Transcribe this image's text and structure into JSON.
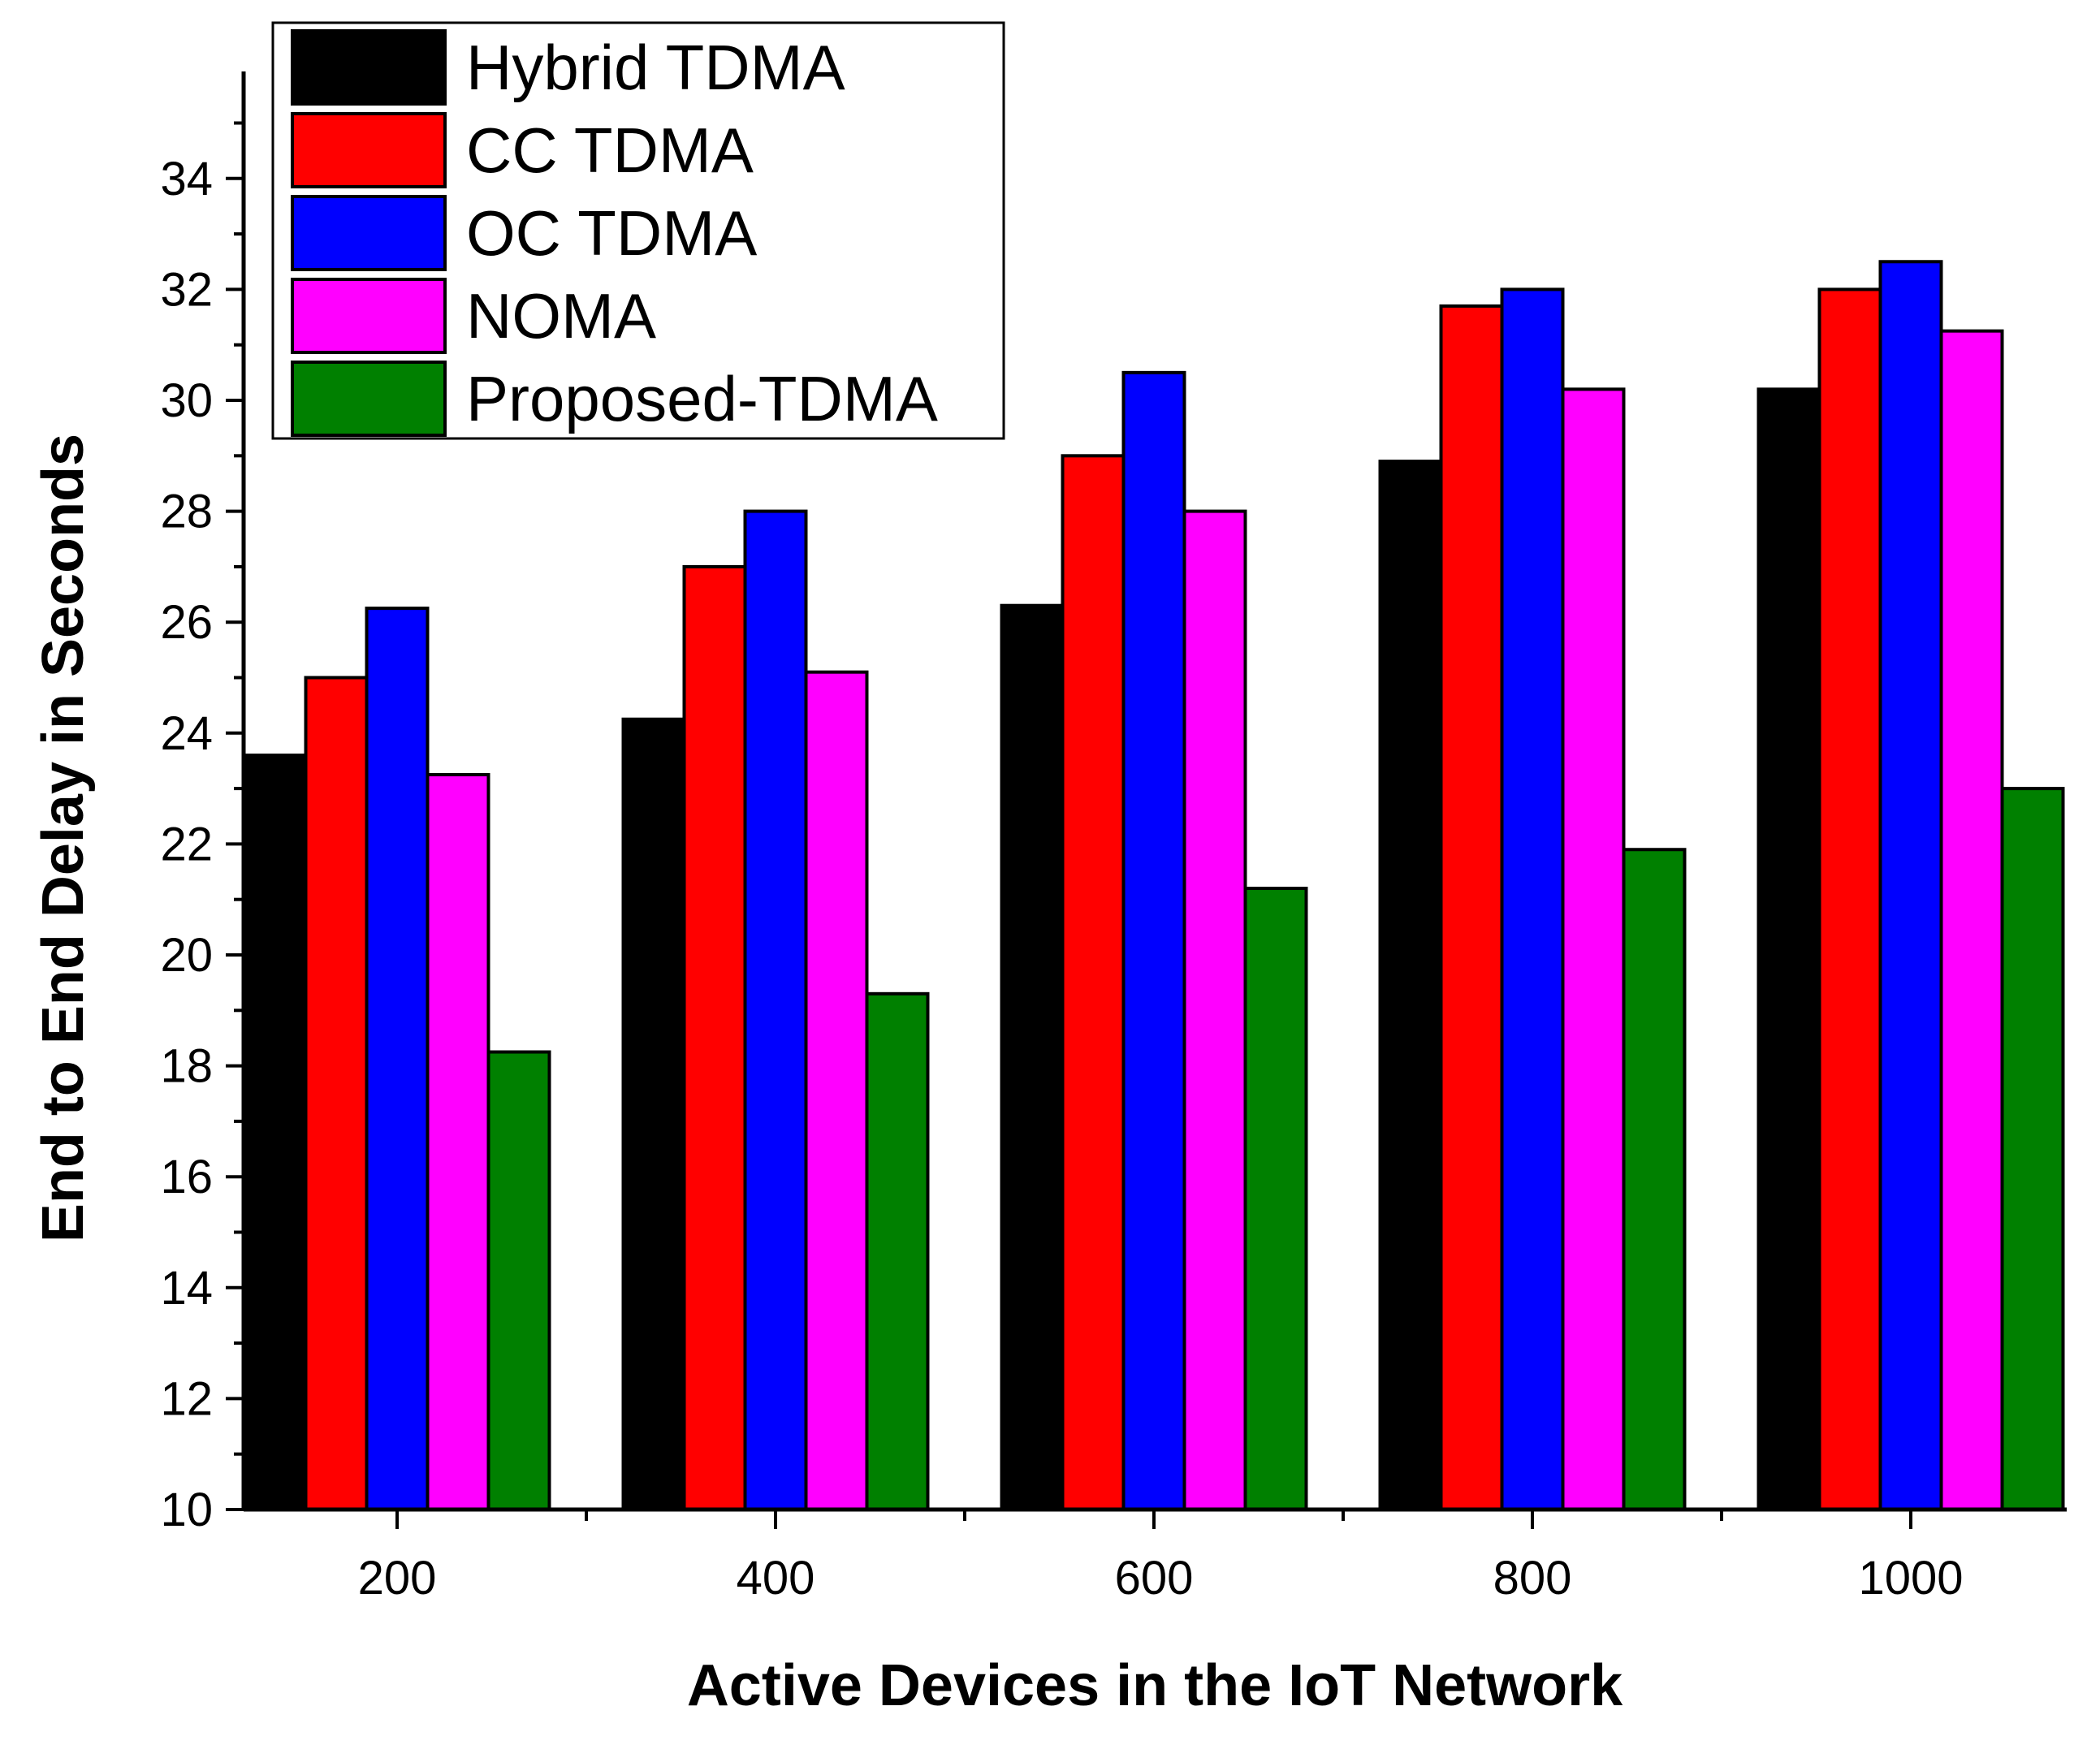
{
  "chart_data": {
    "type": "bar",
    "title": "",
    "xlabel": "Active Devices in the IoT Network",
    "ylabel": "End to End Delay in Seconds",
    "categories": [
      "200",
      "400",
      "600",
      "800",
      "1000"
    ],
    "ylim": [
      10,
      36
    ],
    "yticks": [
      "10",
      "12",
      "14",
      "16",
      "18",
      "20",
      "22",
      "24",
      "26",
      "28",
      "30",
      "32",
      "34"
    ],
    "grid": false,
    "legend_position": "top-left",
    "series": [
      {
        "name": "Hybrid TDMA",
        "color": "#000000",
        "values": [
          23.6,
          24.25,
          26.3,
          28.9,
          30.2
        ]
      },
      {
        "name": "CC TDMA",
        "color": "#ff0000",
        "values": [
          25.0,
          27.0,
          29.0,
          31.7,
          32.0
        ]
      },
      {
        "name": "OC TDMA",
        "color": "#0000ff",
        "values": [
          26.25,
          28.0,
          30.5,
          32.0,
          32.5
        ]
      },
      {
        "name": "NOMA",
        "color": "#ff00ff",
        "values": [
          23.25,
          25.1,
          28.0,
          30.2,
          31.25
        ]
      },
      {
        "name": "Proposed-TDMA",
        "color": "#008000",
        "values": [
          18.25,
          19.3,
          21.2,
          21.9,
          23.0
        ]
      }
    ]
  }
}
